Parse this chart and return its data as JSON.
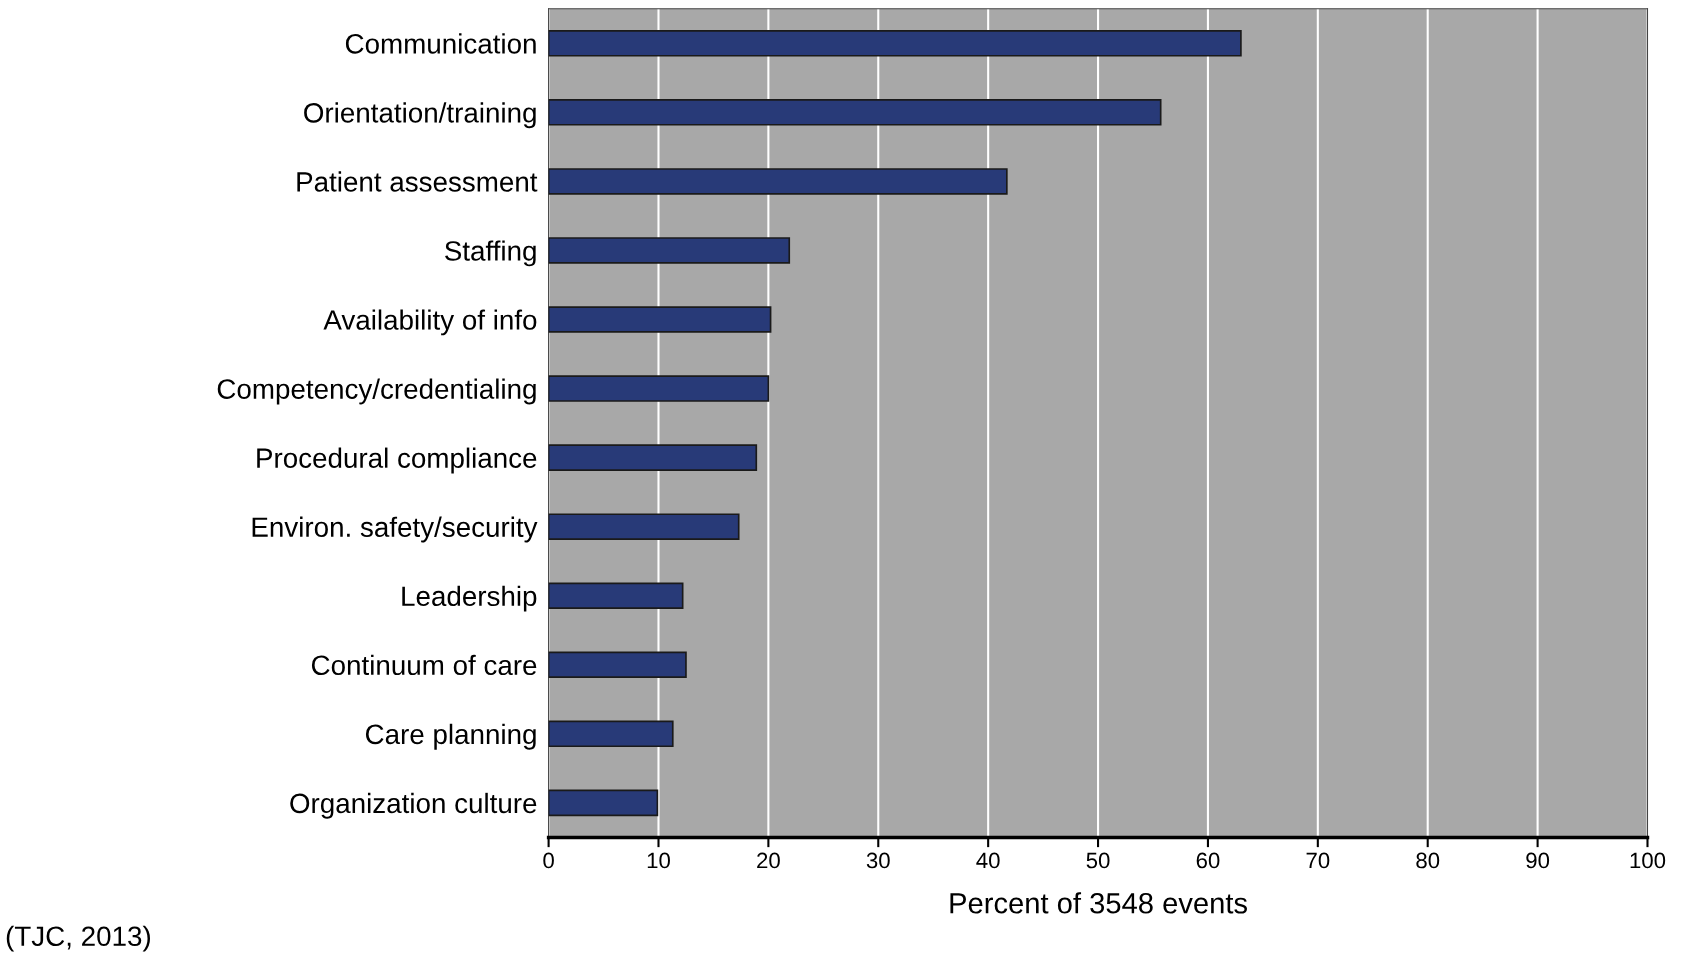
{
  "chart_data": {
    "type": "bar",
    "orientation": "horizontal",
    "categories": [
      "Communication",
      "Orientation/training",
      "Patient assessment",
      "Staffing",
      "Availability of info",
      "Competency/credentialing",
      "Procedural compliance",
      "Environ. safety/security",
      "Leadership",
      "Continuum of care",
      "Care planning",
      "Organization culture"
    ],
    "values": [
      63,
      55.7,
      41.7,
      21.9,
      20.2,
      20,
      18.9,
      17.3,
      12.2,
      12.5,
      11.3,
      9.9
    ],
    "color": "#283a78",
    "xlim": [
      0,
      100
    ],
    "xticks": [
      0,
      10,
      20,
      30,
      40,
      50,
      60,
      70,
      80,
      90,
      100
    ],
    "xlabel": "Percent of 3548 events",
    "grid": "x",
    "annotations": [
      "(TJC, 2013)"
    ]
  }
}
